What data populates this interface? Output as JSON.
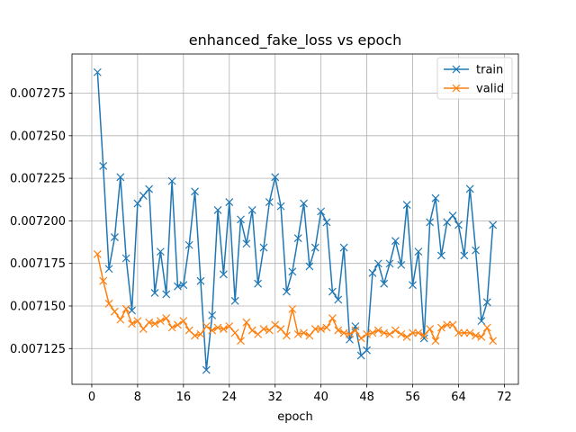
{
  "chart_data": {
    "type": "line",
    "title": "enhanced_fake_loss vs epoch",
    "xlabel": "epoch",
    "ylabel": "",
    "xlim": [
      -3.45,
      74.45
    ],
    "ylim": [
      0.007104,
      0.007298
    ],
    "xticks": [
      0,
      8,
      16,
      24,
      32,
      40,
      48,
      56,
      64,
      72
    ],
    "xtick_labels": [
      "0",
      "8",
      "16",
      "24",
      "32",
      "40",
      "48",
      "56",
      "64",
      "72"
    ],
    "yticks": [
      0.007125,
      0.00715,
      0.007175,
      0.0072,
      0.007225,
      0.00725,
      0.007275
    ],
    "ytick_labels": [
      "0.007125",
      "0.007150",
      "0.007175",
      "0.007200",
      "0.007225",
      "0.007250",
      "0.007275"
    ],
    "grid": true,
    "legend": {
      "position": "top-right",
      "entries": [
        "train",
        "valid"
      ]
    },
    "colors": {
      "train": "#1f77b4",
      "valid": "#ff7f0e"
    },
    "marker": "x",
    "x": [
      1,
      2,
      3,
      4,
      5,
      6,
      7,
      8,
      9,
      10,
      11,
      12,
      13,
      14,
      15,
      16,
      17,
      18,
      19,
      20,
      21,
      22,
      23,
      24,
      25,
      26,
      27,
      28,
      29,
      30,
      31,
      32,
      33,
      34,
      35,
      36,
      37,
      38,
      39,
      40,
      41,
      42,
      43,
      44,
      45,
      46,
      47,
      48,
      49,
      50,
      51,
      52,
      53,
      54,
      55,
      56,
      57,
      58,
      59,
      60,
      61,
      62,
      63,
      64,
      65,
      66,
      67,
      68,
      69,
      70
    ],
    "series": [
      {
        "name": "train",
        "values": [
          0.0072873,
          0.0072322,
          0.0071718,
          0.0071904,
          0.0072257,
          0.007178,
          0.0071474,
          0.0072102,
          0.0072148,
          0.0072187,
          0.0071577,
          0.0071819,
          0.0071569,
          0.0072234,
          0.0071615,
          0.0071623,
          0.0071858,
          0.0072172,
          0.0071647,
          0.0071124,
          0.0071445,
          0.0072063,
          0.0071686,
          0.007211,
          0.007153,
          0.0072008,
          0.0071866,
          0.0072063,
          0.0071631,
          0.0071843,
          0.007211,
          0.0072257,
          0.0072086,
          0.0071584,
          0.0071702,
          0.0071898,
          0.0072102,
          0.0071733,
          0.0071843,
          0.0072055,
          0.0071992,
          0.0071584,
          0.0071537,
          0.0071843,
          0.0071303,
          0.0071381,
          0.0071209,
          0.007124,
          0.0071694,
          0.0071749,
          0.0071631,
          0.0071749,
          0.0071882,
          0.0071741,
          0.0072094,
          0.0071623,
          0.0071819,
          0.007131,
          0.0071992,
          0.0072133,
          0.0071796,
          0.0071992,
          0.0072031,
          0.0071976,
          0.0071796,
          0.0072188,
          0.0071827,
          0.0071412,
          0.0071522,
          0.0071976
        ]
      },
      {
        "name": "valid",
        "values": [
          0.0071804,
          0.0071647,
          0.0071514,
          0.0071467,
          0.007142,
          0.0071483,
          0.0071396,
          0.0071412,
          0.0071365,
          0.0071404,
          0.0071396,
          0.0071412,
          0.0071428,
          0.0071373,
          0.0071389,
          0.0071412,
          0.0071357,
          0.0071326,
          0.0071334,
          0.0071381,
          0.0071357,
          0.0071373,
          0.0071365,
          0.0071381,
          0.0071342,
          0.0071295,
          0.0071404,
          0.0071357,
          0.0071334,
          0.0071365,
          0.0071357,
          0.0071389,
          0.0071365,
          0.0071326,
          0.0071482,
          0.0071334,
          0.0071342,
          0.0071326,
          0.0071365,
          0.0071365,
          0.0071373,
          0.0071428,
          0.0071357,
          0.0071342,
          0.0071334,
          0.0071357,
          0.007131,
          0.0071334,
          0.0071342,
          0.0071357,
          0.0071342,
          0.0071334,
          0.0071357,
          0.0071334,
          0.0071318,
          0.0071342,
          0.0071342,
          0.0071326,
          0.0071365,
          0.0071295,
          0.0071373,
          0.0071389,
          0.0071389,
          0.0071342,
          0.0071342,
          0.0071342,
          0.0071326,
          0.0071318,
          0.0071373,
          0.0071295
        ]
      }
    ]
  }
}
